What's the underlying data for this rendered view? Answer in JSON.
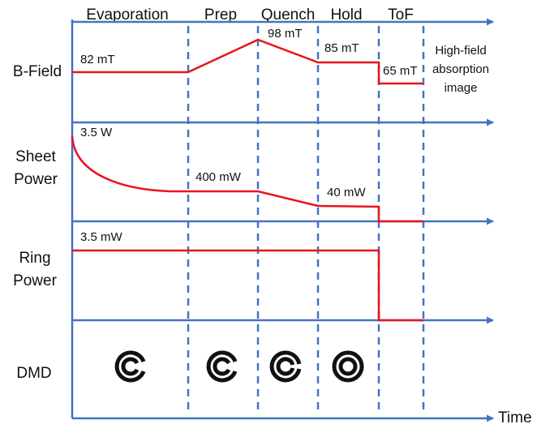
{
  "phases": [
    "Evaporation",
    "Prep",
    "Quench",
    "Hold",
    "ToF"
  ],
  "rows": [
    {
      "label_lines": [
        "B-Field"
      ]
    },
    {
      "label_lines": [
        "Sheet",
        "Power"
      ]
    },
    {
      "label_lines": [
        "Ring",
        "Power"
      ]
    },
    {
      "label_lines": [
        "DMD"
      ]
    }
  ],
  "time_label": "Time",
  "b_field": {
    "labels": [
      "82 mT",
      "98 mT",
      "85 mT",
      "65 mT"
    ],
    "note_lines": [
      "High-field",
      "absorption",
      "image"
    ]
  },
  "sheet_power": {
    "labels": [
      "3.5 W",
      "400 mW",
      "40 mW"
    ]
  },
  "ring_power": {
    "labels": [
      "3.5 mW"
    ]
  },
  "dmd": {
    "patterns": [
      "ring-with-gap",
      "ring-with-gap",
      "ring-with-small-gap",
      "closed-ring"
    ]
  },
  "colors": {
    "axis": "#4472c4",
    "trace": "#e8141c",
    "icon": "#111111"
  }
}
